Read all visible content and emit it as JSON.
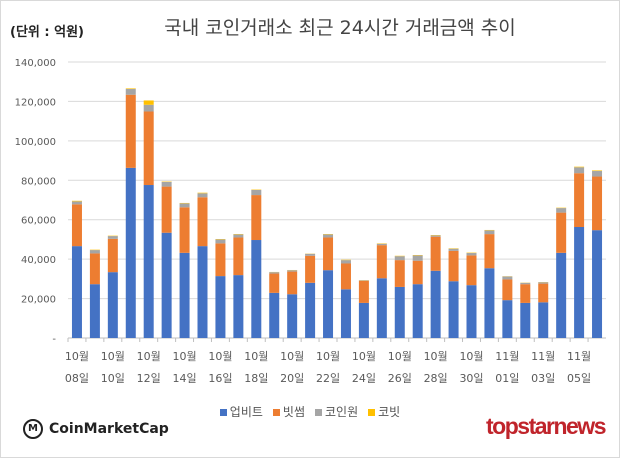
{
  "chart_data": {
    "type": "bar",
    "stacked": true,
    "title": "국내 코인거래소 최근 24시간 거래금액 추이",
    "unit_label": "(단위 : 억원)",
    "ylim": [
      0,
      140000
    ],
    "y_ticks": [
      "-",
      "20,000",
      "40,000",
      "60,000",
      "80,000",
      "100,000",
      "120,000",
      "140,000"
    ],
    "grid": true,
    "legend_position": "bottom",
    "tick_labels": [
      [
        "10월",
        "08일"
      ],
      [
        "10월",
        "10일"
      ],
      [
        "10월",
        "12일"
      ],
      [
        "10월",
        "14일"
      ],
      [
        "10월",
        "16일"
      ],
      [
        "10월",
        "18일"
      ],
      [
        "10월",
        "20일"
      ],
      [
        "10월",
        "22일"
      ],
      [
        "10월",
        "24일"
      ],
      [
        "10월",
        "26일"
      ],
      [
        "10월",
        "28일"
      ],
      [
        "10월",
        "30일"
      ],
      [
        "11월",
        "01일"
      ],
      [
        "11월",
        "03일"
      ],
      [
        "11월",
        "05일"
      ]
    ],
    "series": [
      {
        "name": "업비트",
        "color": "#4472C4",
        "values": [
          46600,
          27300,
          33400,
          86300,
          77600,
          53400,
          43200,
          46600,
          31400,
          31900,
          49700,
          22900,
          22200,
          28000,
          34400,
          24700,
          17800,
          30300,
          25900,
          27300,
          34100,
          28800,
          26800,
          35400,
          19200,
          17800,
          18100,
          43200,
          56300,
          54700
        ]
      },
      {
        "name": "빗썸",
        "color": "#ED7D31",
        "values": [
          21200,
          15600,
          16900,
          37100,
          37300,
          23400,
          23100,
          24800,
          16600,
          19100,
          22800,
          9800,
          11500,
          13700,
          16600,
          13100,
          11200,
          16800,
          13600,
          11900,
          17300,
          15400,
          15100,
          17300,
          10500,
          9500,
          9500,
          20400,
          27300,
          27200
        ]
      },
      {
        "name": "코인원",
        "color": "#A5A5A5",
        "values": [
          1500,
          1700,
          1400,
          2900,
          3400,
          2400,
          2000,
          2000,
          2000,
          1500,
          2600,
          700,
          700,
          1000,
          1500,
          1700,
          300,
          700,
          2000,
          2700,
          600,
          1100,
          1200,
          1900,
          1500,
          700,
          700,
          2300,
          3000,
          2800
        ]
      },
      {
        "name": "코빗",
        "color": "#FFC000",
        "values": [
          300,
          200,
          200,
          300,
          2200,
          200,
          200,
          300,
          200,
          200,
          200,
          100,
          100,
          100,
          200,
          200,
          100,
          200,
          200,
          200,
          200,
          200,
          200,
          200,
          100,
          100,
          100,
          200,
          300,
          300
        ]
      }
    ]
  },
  "branding": {
    "left_logo": "CoinMarketCap",
    "right_logo": "topstarnews"
  }
}
